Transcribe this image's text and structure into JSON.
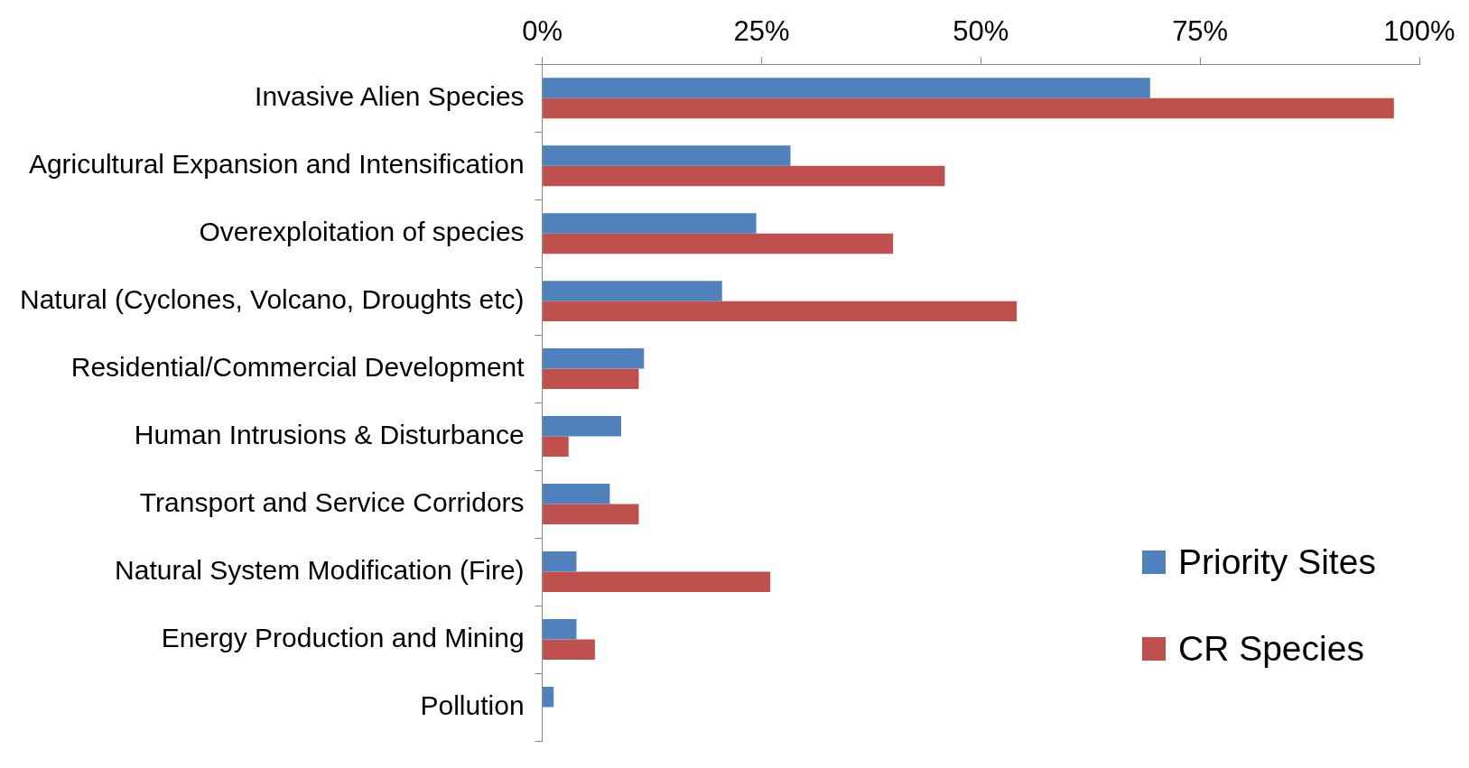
{
  "chart_data": {
    "type": "bar",
    "orientation": "horizontal",
    "categories": [
      "Invasive Alien Species",
      "Agricultural Expansion and Intensification",
      "Overexploitation of species",
      "Natural (Cyclones, Volcano, Droughts etc)",
      "Residential/Commercial Development",
      "Human Intrusions & Disturbance",
      "Transport and Service Corridors",
      "Natural System Modification (Fire)",
      "Energy Production and Mining",
      "Pollution"
    ],
    "series": [
      {
        "name": "Priority Sites",
        "color": "#4f81bd",
        "values": [
          69.3,
          28.3,
          24.4,
          20.5,
          11.6,
          9.0,
          7.7,
          3.9,
          3.9,
          1.3
        ]
      },
      {
        "name": "CR Species",
        "color": "#c0504d",
        "values": [
          97.1,
          45.9,
          40.0,
          54.1,
          11.0,
          3.0,
          11.0,
          26.0,
          6.0,
          0
        ]
      }
    ],
    "xlim": [
      0,
      100
    ],
    "xticks": [
      {
        "value": 0,
        "label": "0%"
      },
      {
        "value": 25,
        "label": "25%"
      },
      {
        "value": 50,
        "label": "50%"
      },
      {
        "value": 75,
        "label": "75%"
      },
      {
        "value": 100,
        "label": "100%"
      }
    ],
    "grid": false,
    "legend": "bottom right"
  }
}
